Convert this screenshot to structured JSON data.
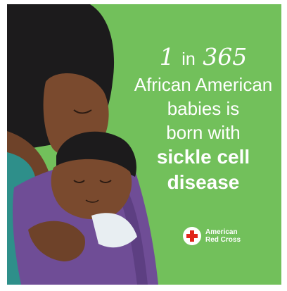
{
  "stat": {
    "num": "1",
    "mid": "in",
    "den": "365"
  },
  "headline": {
    "line1": "African American",
    "line2": "babies is",
    "line3": "born with",
    "emphasis1": "sickle cell",
    "emphasis2": "disease"
  },
  "logo": {
    "line1": "American",
    "line2": "Red Cross",
    "icon": "red-cross-icon"
  },
  "colors": {
    "background": "#72c05b",
    "text": "#ffffff",
    "cross": "#e1251b",
    "skin": "#7a4a2e",
    "hair": "#1c1b1c",
    "wrap": "#6f4d96"
  }
}
